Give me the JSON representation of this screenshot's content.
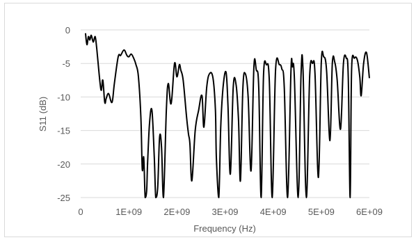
{
  "chart_data": {
    "type": "line",
    "title": "",
    "xlabel": "Frequency (Hz)",
    "ylabel": "S11 (dB)",
    "xlim": [
      0,
      6000000000
    ],
    "ylim": [
      -25,
      0
    ],
    "x_ticks": [
      "0",
      "1E+09",
      "2E+09",
      "3E+09",
      "4E+09",
      "5E+09",
      "6E+09"
    ],
    "y_ticks": [
      "0",
      "-5",
      "-10",
      "-15",
      "-20",
      "-25"
    ],
    "x_tick_values": [
      0,
      1000000000,
      2000000000,
      3000000000,
      4000000000,
      5000000000,
      6000000000
    ],
    "y_tick_values": [
      0,
      -5,
      -10,
      -15,
      -20,
      -25
    ],
    "grid": "horizontal",
    "line_color": "#000000",
    "grid_color": "#d9d9d9",
    "series": [
      {
        "x": [
          100000000,
          130000000,
          160000000,
          190000000,
          220000000,
          260000000,
          300000000,
          330000000,
          350000000,
          400000000,
          430000000,
          460000000,
          500000000,
          530000000,
          580000000,
          650000000,
          700000000,
          780000000,
          830000000,
          900000000,
          960000000,
          1000000000,
          1050000000,
          1100000000,
          1150000000,
          1200000000,
          1250000000,
          1280000000,
          1310000000,
          1340000000,
          1370000000,
          1390000000,
          1430000000,
          1480000000,
          1530000000,
          1560000000,
          1600000000,
          1640000000,
          1680000000,
          1720000000,
          1780000000,
          1820000000,
          1880000000,
          1950000000,
          2000000000,
          2050000000,
          2080000000,
          2130000000,
          2200000000,
          2240000000,
          2270000000,
          2310000000,
          2380000000,
          2450000000,
          2520000000,
          2560000000,
          2620000000,
          2680000000,
          2750000000,
          2800000000,
          2820000000,
          2870000000,
          2910000000,
          2960000000,
          3020000000,
          3060000000,
          3110000000,
          3170000000,
          3230000000,
          3280000000,
          3320000000,
          3370000000,
          3420000000,
          3480000000,
          3540000000,
          3600000000,
          3650000000,
          3700000000,
          3750000000,
          3800000000,
          3860000000,
          3920000000,
          3980000000,
          4050000000,
          4130000000,
          4180000000,
          4230000000,
          4300000000,
          4370000000,
          4400000000,
          4440000000,
          4520000000,
          4580000000,
          4620000000,
          4690000000,
          4760000000,
          4820000000,
          4870000000,
          4940000000,
          5000000000,
          5050000000,
          5110000000,
          5180000000,
          5230000000,
          5280000000,
          5330000000,
          5400000000,
          5460000000,
          5520000000,
          5560000000,
          5600000000,
          5630000000,
          5690000000,
          5750000000,
          5800000000,
          5830000000,
          5880000000,
          5940000000,
          6000000000
        ],
        "y": [
          -0.5,
          -2.2,
          -1.0,
          -1.5,
          -0.8,
          -1.8,
          -1.0,
          -2.5,
          -4.0,
          -7.8,
          -9.0,
          -7.5,
          -10.8,
          -10.2,
          -9.5,
          -10.8,
          -8.0,
          -4.0,
          -3.8,
          -3.0,
          -3.8,
          -4.0,
          -3.6,
          -4.2,
          -5.2,
          -7.0,
          -13.0,
          -20.8,
          -19.0,
          -25.0,
          -24.0,
          -20.0,
          -14.0,
          -12.0,
          -19.0,
          -25.0,
          -23.5,
          -16.0,
          -17.5,
          -25.0,
          -12.0,
          -8.0,
          -11.0,
          -5.0,
          -7.0,
          -5.2,
          -6.0,
          -7.5,
          -13.0,
          -15.5,
          -17.0,
          -22.5,
          -15.0,
          -12.0,
          -9.8,
          -14.5,
          -8.5,
          -6.5,
          -7.2,
          -12.0,
          -19.0,
          -25.0,
          -14.5,
          -8.5,
          -6.3,
          -11.0,
          -21.5,
          -8.5,
          -8.2,
          -13.5,
          -22.5,
          -8.8,
          -6.5,
          -10.0,
          -21.0,
          -5.5,
          -6.0,
          -8.5,
          -25.0,
          -6.8,
          -5.2,
          -7.5,
          -25.0,
          -6.0,
          -5.2,
          -5.8,
          -8.5,
          -25.0,
          -6.0,
          -5.5,
          -7.0,
          -25.0,
          -6.5,
          -6.0,
          -25.0,
          -6.8,
          -5.0,
          -6.5,
          -22.0,
          -5.0,
          -4.0,
          -6.0,
          -16.5,
          -5.0,
          -4.8,
          -7.5,
          -14.8,
          -5.0,
          -4.2,
          -7.0,
          -25.0,
          -6.0,
          -4.2,
          -4.5,
          -7.0,
          -9.8,
          -5.0,
          -3.4,
          -7.2
        ]
      }
    ]
  }
}
